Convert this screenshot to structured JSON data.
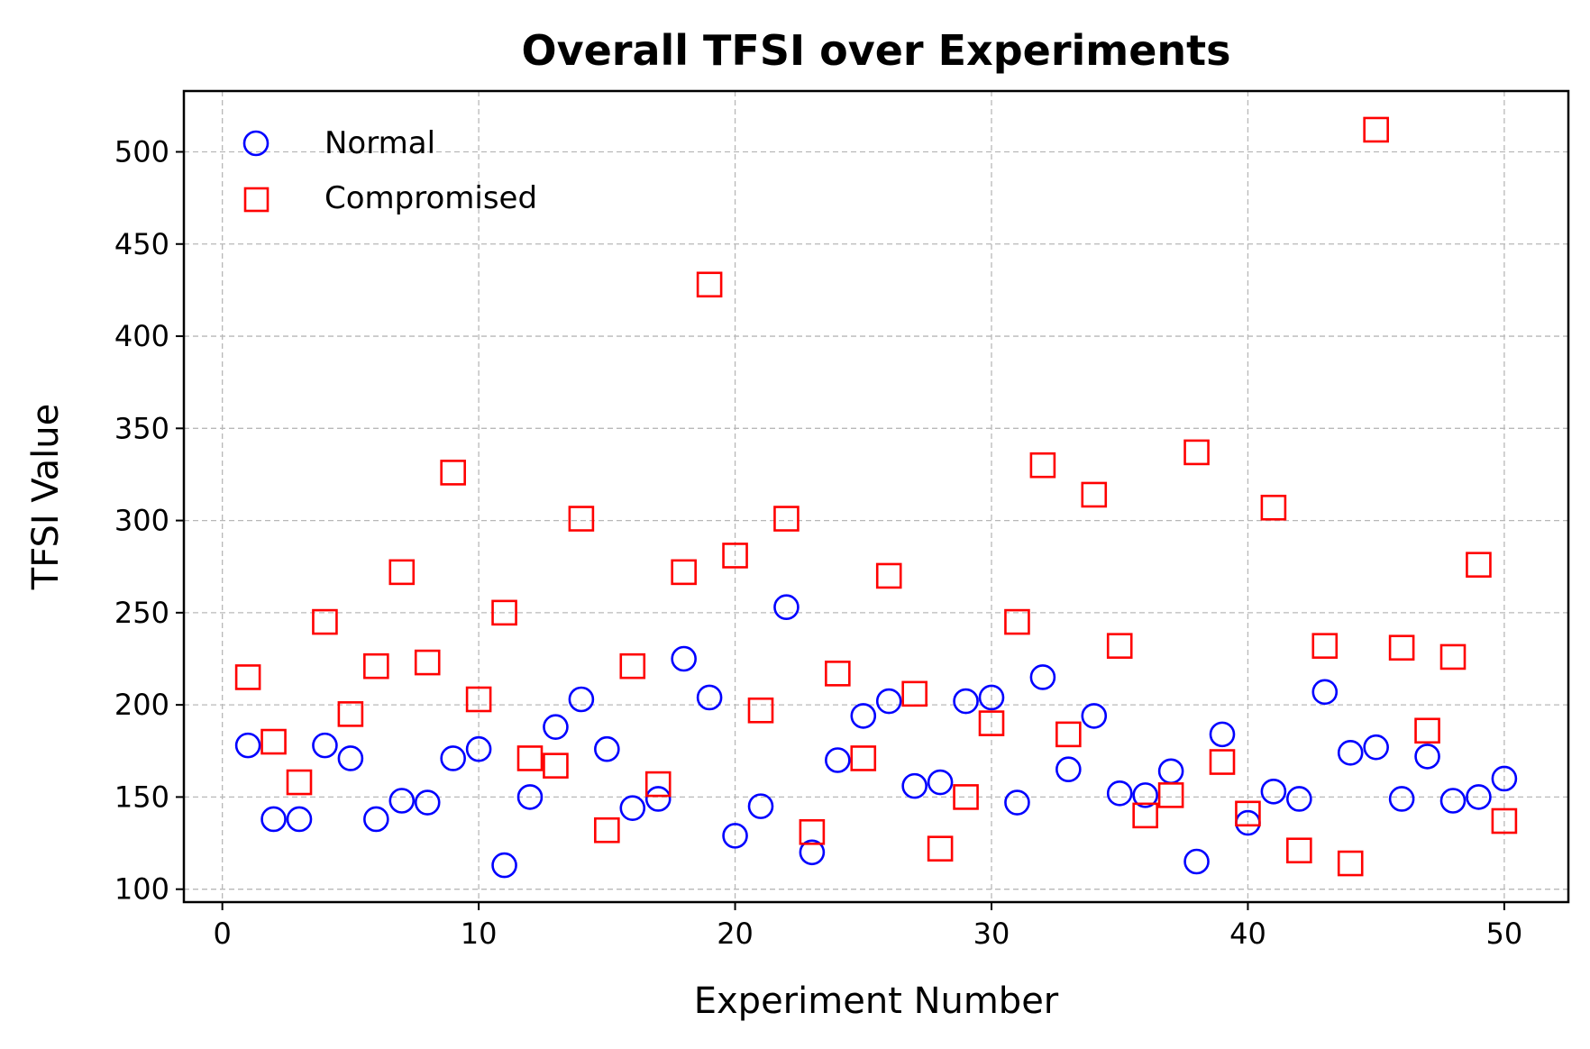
{
  "chart_data": {
    "type": "scatter",
    "title": "Overall TFSI over Experiments",
    "xlabel": "Experiment Number",
    "ylabel": "TFSI Value",
    "xlim": [
      -1.5,
      52.5
    ],
    "ylim": [
      93,
      533
    ],
    "xticks": [
      0,
      10,
      20,
      30,
      40,
      50
    ],
    "yticks": [
      100,
      150,
      200,
      250,
      300,
      350,
      400,
      450,
      500
    ],
    "grid": true,
    "legend_position": "top-left",
    "series": [
      {
        "name": "Normal",
        "marker": "circle",
        "color": "#0000ff",
        "x": [
          1,
          2,
          3,
          4,
          5,
          6,
          7,
          8,
          9,
          10,
          11,
          12,
          13,
          14,
          15,
          16,
          17,
          18,
          19,
          20,
          21,
          22,
          23,
          24,
          25,
          26,
          27,
          28,
          29,
          30,
          31,
          32,
          33,
          34,
          35,
          36,
          37,
          38,
          39,
          40,
          41,
          42,
          43,
          44,
          45,
          46,
          47,
          48,
          49,
          50
        ],
        "y": [
          178,
          138,
          138,
          178,
          171,
          138,
          148,
          147,
          171,
          176,
          113,
          150,
          188,
          203,
          176,
          144,
          149,
          225,
          204,
          129,
          145,
          253,
          120,
          170,
          194,
          202,
          156,
          158,
          202,
          204,
          147,
          215,
          165,
          194,
          152,
          151,
          164,
          115,
          184,
          136,
          153,
          149,
          207,
          174,
          177,
          149,
          172,
          148,
          150,
          160
        ]
      },
      {
        "name": "Compromised",
        "marker": "square",
        "color": "#ff0000",
        "x": [
          1,
          2,
          3,
          4,
          5,
          6,
          7,
          8,
          9,
          10,
          11,
          12,
          13,
          14,
          15,
          16,
          17,
          18,
          19,
          20,
          21,
          22,
          23,
          24,
          25,
          26,
          27,
          28,
          29,
          30,
          31,
          32,
          33,
          34,
          35,
          36,
          37,
          38,
          39,
          40,
          41,
          42,
          43,
          44,
          45,
          46,
          47,
          48,
          49,
          50
        ],
        "y": [
          215,
          180,
          158,
          245,
          195,
          221,
          272,
          223,
          326,
          203,
          250,
          171,
          167,
          301,
          132,
          221,
          157,
          272,
          428,
          281,
          197,
          301,
          131,
          217,
          171,
          270,
          206,
          122,
          150,
          190,
          245,
          330,
          184,
          314,
          232,
          140,
          151,
          337,
          169,
          141,
          307,
          121,
          232,
          114,
          512,
          231,
          186,
          226,
          276,
          137
        ]
      }
    ]
  }
}
